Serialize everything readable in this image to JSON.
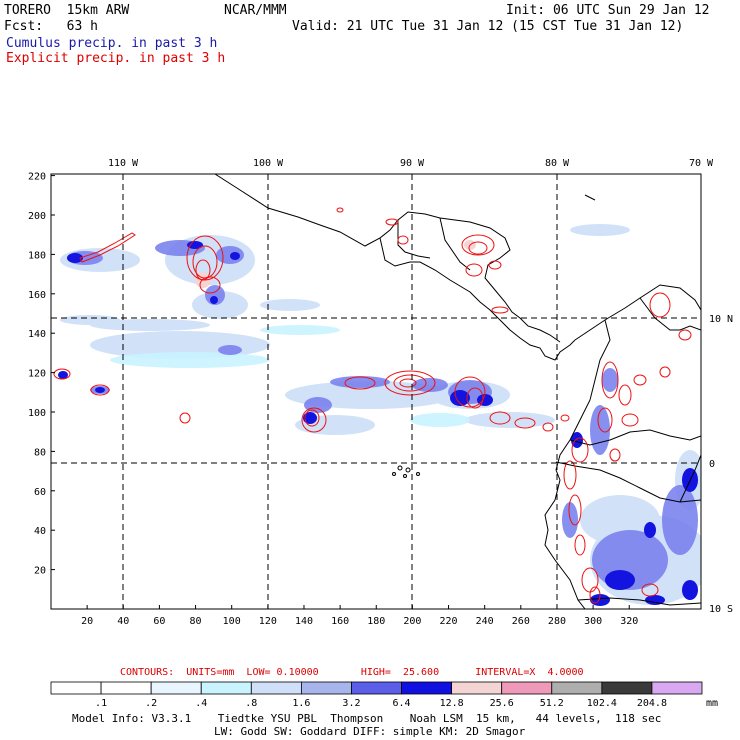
{
  "header": {
    "model": "TORERO  15km ARW",
    "center": "NCAR/MMM",
    "init": "Init: 06 UTC Sun 29 Jan 12",
    "fcst": "Fcst:   63 h",
    "valid": "Valid: 21 UTC Tue 31 Jan 12 (15 CST Tue 31 Jan 12)",
    "cumulus_title": "Cumulus precip. in past 3 h",
    "explicit_title": "Explicit precip. in past 3 h"
  },
  "colors": {
    "cumulus_text": "#1a1aa8",
    "explicit_text": "#dd0000",
    "contour": "#ee1111",
    "coast": "#000000"
  },
  "map": {
    "lon_labels": [
      "110 W",
      "100 W",
      "90 W",
      "80 W",
      "70 W"
    ],
    "lat_labels": [
      "10 N",
      "0",
      "10 S"
    ],
    "y_ticks": [
      "220",
      "200",
      "180",
      "160",
      "140",
      "120",
      "100",
      "80",
      "60",
      "40",
      "20"
    ],
    "x_ticks": [
      "20",
      "40",
      "60",
      "80",
      "100",
      "120",
      "140",
      "160",
      "180",
      "200",
      "220",
      "240",
      "260",
      "280",
      "300",
      "320"
    ]
  },
  "contours_line": {
    "label": "CONTOURS:  UNITS=mm  LOW= 0.10000       HIGH=  25.600      INTERVAL=X  4.0000"
  },
  "colorbar": {
    "unit": "mm",
    "labels": [
      ".1",
      ".2",
      ".4",
      ".8",
      "1.6",
      "3.2",
      "6.4",
      "12.8",
      "25.6",
      "51.2",
      "102.4",
      "204.8"
    ],
    "colors": [
      "#ffffff",
      "#ffffff",
      "#eaf6ff",
      "#c9f3ff",
      "#cfe0f8",
      "#a8b4ec",
      "#5a5ee8",
      "#1010e0",
      "#f5d4d4",
      "#ee9ab8",
      "#aeaeae",
      "#3a3a3a",
      "#d8a8f0"
    ]
  },
  "footer": {
    "line1": "Model Info: V3.3.1    Tiedtke YSU PBL  Thompson    Noah LSM  15 km,   44 levels,  118 sec",
    "line2": "LW: Godd SW: Goddard DIFF: simple KM: 2D Smagor"
  }
}
